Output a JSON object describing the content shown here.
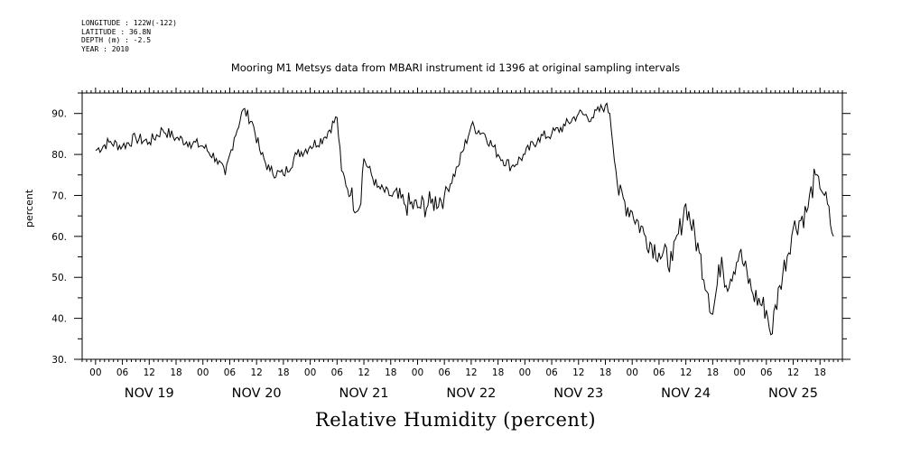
{
  "meta": {
    "lines": [
      "LONGITUDE : 122W(-122)",
      "LATITUDE : 36.8N",
      "DEPTH (m) : -2.5",
      "YEAR : 2010"
    ]
  },
  "chart_data": {
    "type": "line",
    "title": "Mooring M1 Metsys data from MBARI instrument id 1396 at original sampling intervals",
    "xlabel": "Relative Humidity (percent)",
    "ylabel": "percent",
    "ylim": [
      30,
      95
    ],
    "yticks": [
      30,
      40,
      50,
      60,
      70,
      80,
      90
    ],
    "ytick_labels": [
      "30.",
      "40.",
      "50.",
      "60.",
      "70.",
      "80.",
      "90."
    ],
    "xlim": [
      "2010-11-18T21:00",
      "2010-11-25T23:00"
    ],
    "hour_tick_labels": [
      "00",
      "06",
      "12",
      "18"
    ],
    "day_labels": [
      {
        "date": "2010-11-19T12:00",
        "label": "NOV 19"
      },
      {
        "date": "2010-11-20T12:00",
        "label": "NOV 20"
      },
      {
        "date": "2010-11-21T12:00",
        "label": "NOV 21"
      },
      {
        "date": "2010-11-22T12:00",
        "label": "NOV 22"
      },
      {
        "date": "2010-11-23T12:00",
        "label": "NOV 23"
      },
      {
        "date": "2010-11-24T12:00",
        "label": "NOV 24"
      },
      {
        "date": "2010-11-25T12:00",
        "label": "NOV 25"
      }
    ],
    "grid": false,
    "series": [
      {
        "color": "#000000",
        "x": [
          "2010-11-19T00:00",
          "2010-11-19T03:00",
          "2010-11-19T06:00",
          "2010-11-19T09:00",
          "2010-11-19T12:00",
          "2010-11-19T15:00",
          "2010-11-19T18:00",
          "2010-11-19T21:00",
          "2010-11-20T00:00",
          "2010-11-20T03:00",
          "2010-11-20T05:00",
          "2010-11-20T07:00",
          "2010-11-20T09:00",
          "2010-11-20T11:00",
          "2010-11-20T13:00",
          "2010-11-20T15:00",
          "2010-11-20T18:00",
          "2010-11-20T21:00",
          "2010-11-21T00:00",
          "2010-11-21T03:00",
          "2010-11-21T06:00",
          "2010-11-21T07:00",
          "2010-11-21T09:00",
          "2010-11-21T11:00",
          "2010-11-21T12:00",
          "2010-11-21T15:00",
          "2010-11-21T18:00",
          "2010-11-21T21:00",
          "2010-11-22T00:00",
          "2010-11-22T03:00",
          "2010-11-22T06:00",
          "2010-11-22T09:00",
          "2010-11-22T12:00",
          "2010-11-22T15:00",
          "2010-11-22T18:00",
          "2010-11-22T21:00",
          "2010-11-23T00:00",
          "2010-11-23T03:00",
          "2010-11-23T06:00",
          "2010-11-23T09:00",
          "2010-11-23T12:00",
          "2010-11-23T15:00",
          "2010-11-23T18:00",
          "2010-11-23T19:00",
          "2010-11-23T21:00",
          "2010-11-24T00:00",
          "2010-11-24T03:00",
          "2010-11-24T06:00",
          "2010-11-24T09:00",
          "2010-11-24T12:00",
          "2010-11-24T15:00",
          "2010-11-24T17:00",
          "2010-11-24T18:00",
          "2010-11-24T20:00",
          "2010-11-24T21:00",
          "2010-11-25T00:00",
          "2010-11-25T03:00",
          "2010-11-25T06:00",
          "2010-11-25T07:00",
          "2010-11-25T09:00",
          "2010-11-25T12:00",
          "2010-11-25T15:00",
          "2010-11-25T17:00",
          "2010-11-25T19:00",
          "2010-11-25T21:00"
        ],
        "y": [
          81,
          83,
          82,
          84,
          83,
          86,
          84,
          83,
          82,
          79,
          75,
          84,
          91,
          88,
          80,
          76,
          75,
          80,
          82,
          84,
          89,
          76,
          70,
          67,
          79,
          72,
          70,
          68,
          67,
          68,
          70,
          77,
          87,
          85,
          80,
          77,
          80,
          84,
          85,
          87,
          90,
          89,
          92,
          90,
          70,
          66,
          60,
          56,
          54,
          68,
          56,
          46,
          41,
          55,
          48,
          56,
          46,
          42,
          36,
          48,
          62,
          66,
          75,
          70,
          60
        ]
      }
    ]
  }
}
